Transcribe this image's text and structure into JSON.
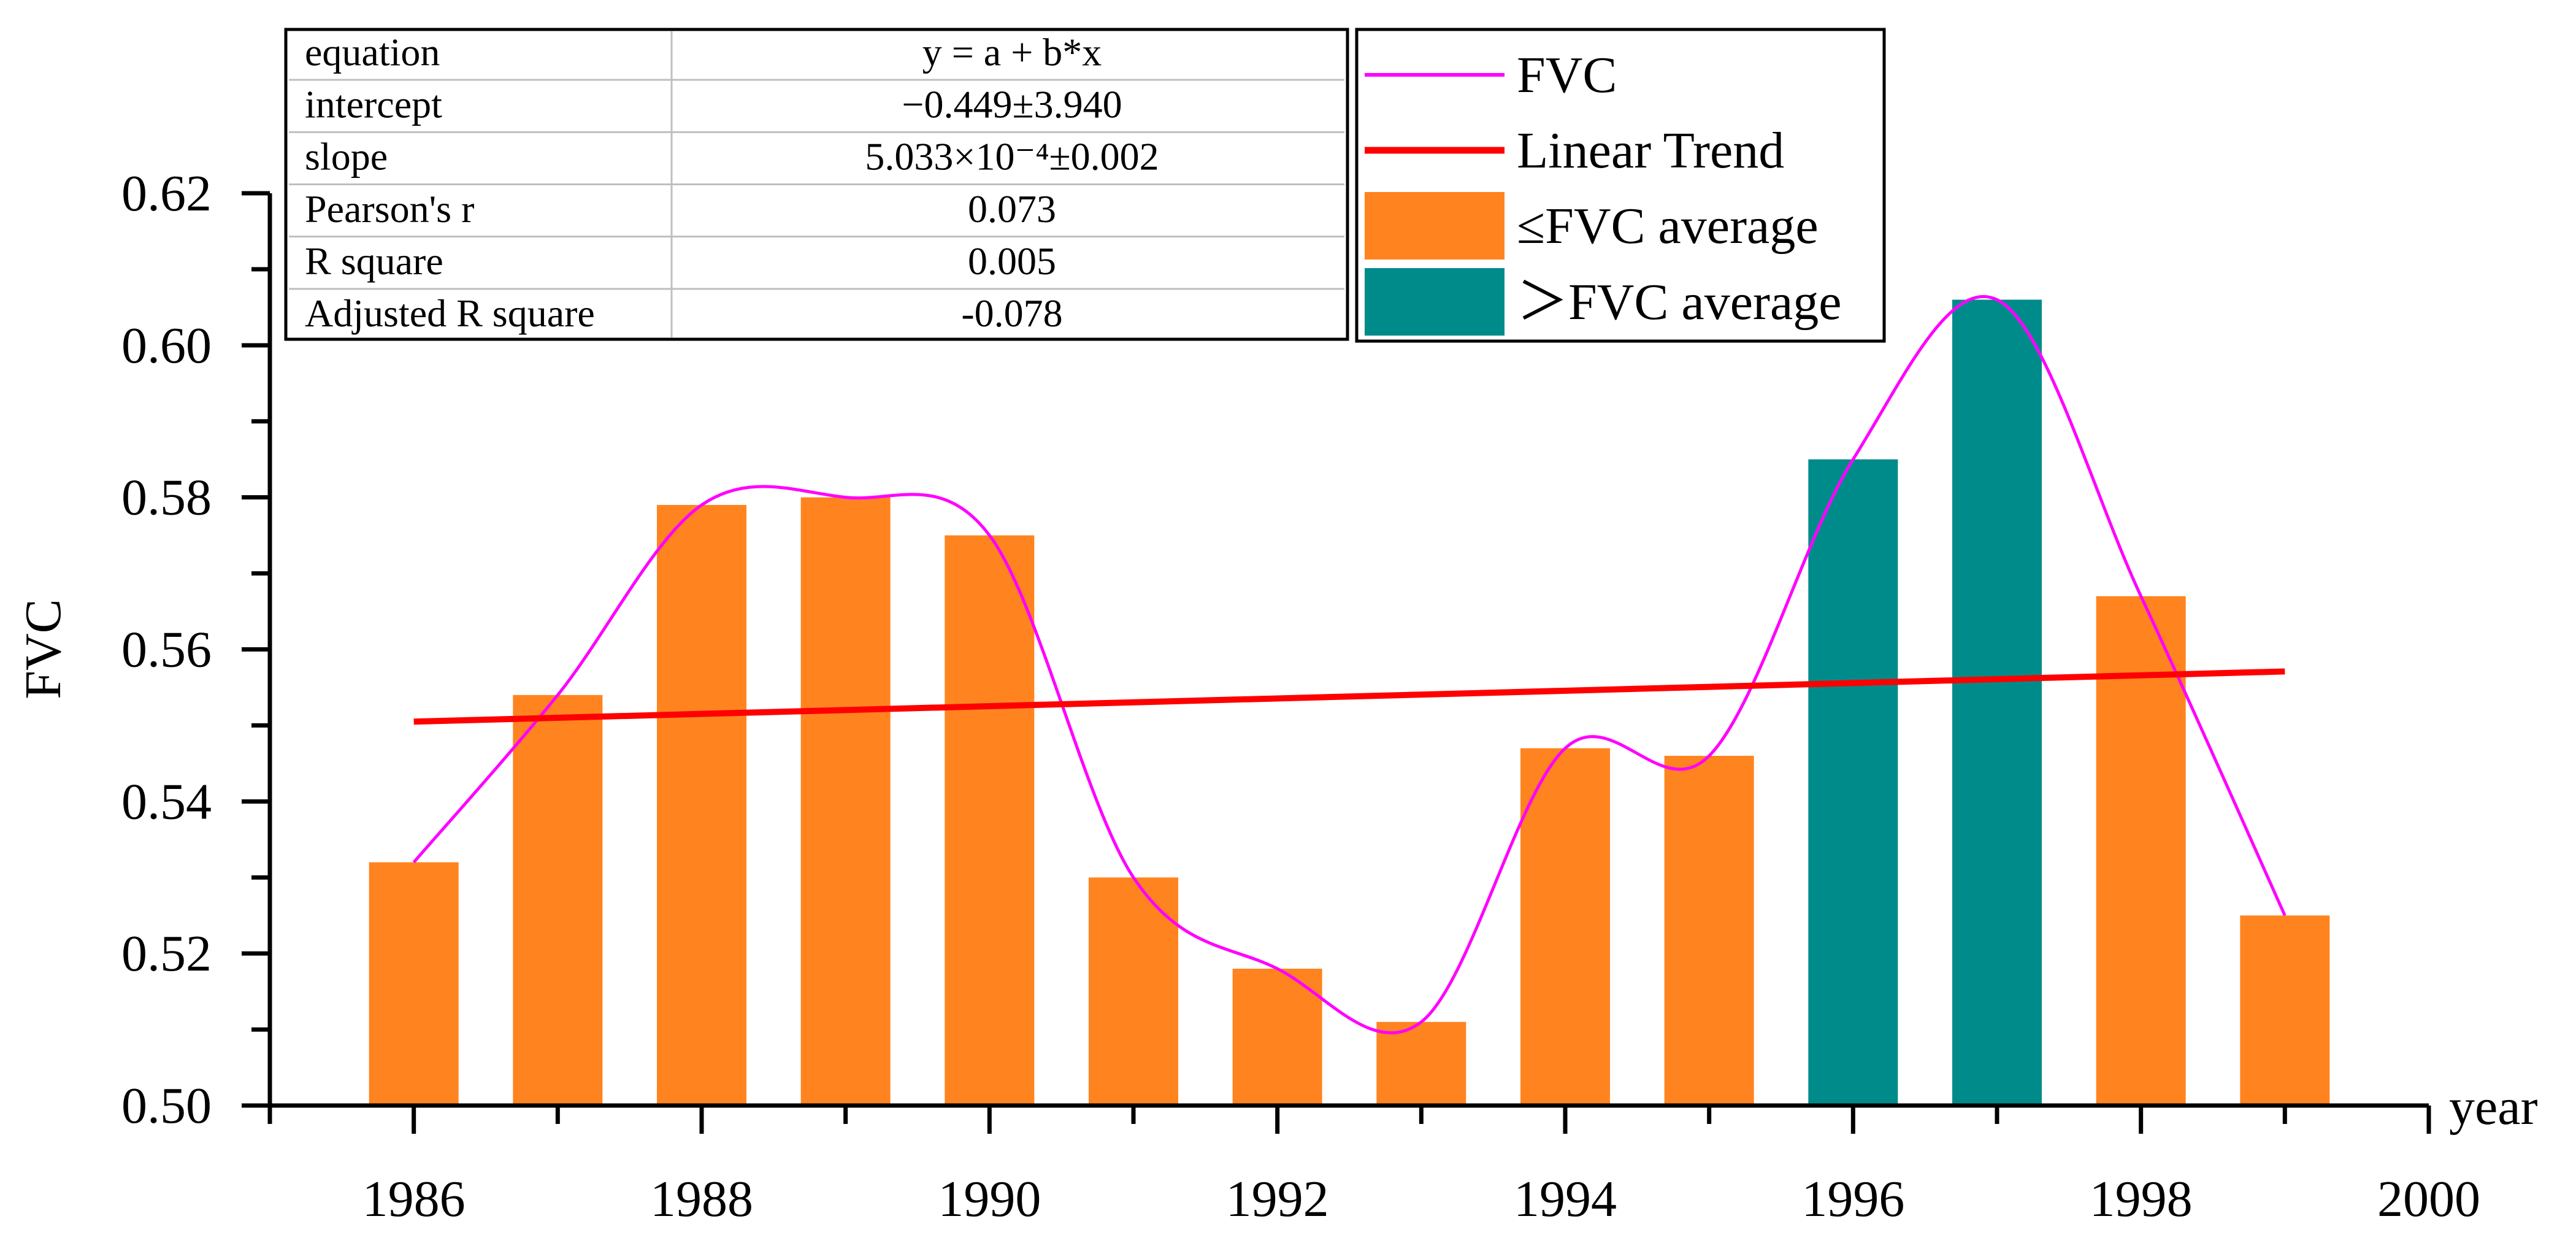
{
  "chart_data": {
    "type": "bar",
    "title": "",
    "xlabel": "year",
    "ylabel": "FVC",
    "xlim": [
      1985,
      2000
    ],
    "ylim": [
      0.5,
      0.62
    ],
    "x_ticks": [
      "1986",
      "1988",
      "1990",
      "1992",
      "1994",
      "1996",
      "1998",
      "2000"
    ],
    "y_ticks": [
      "0.50",
      "0.52",
      "0.54",
      "0.56",
      "0.58",
      "0.60",
      "0.62"
    ],
    "grid": false,
    "categories": [
      1986,
      1987,
      1988,
      1989,
      1990,
      1991,
      1992,
      1993,
      1994,
      1995,
      1996,
      1997,
      1998,
      1999
    ],
    "values": [
      0.532,
      0.554,
      0.579,
      0.58,
      0.575,
      0.53,
      0.518,
      0.511,
      0.547,
      0.546,
      0.585,
      0.606,
      0.567,
      0.525
    ],
    "above_average": [
      false,
      false,
      false,
      false,
      false,
      false,
      false,
      false,
      false,
      false,
      true,
      true,
      false,
      false
    ],
    "series": [
      {
        "name": "FVC",
        "kind": "smooth-line",
        "color": "#ff00ff"
      },
      {
        "name": "Linear Trend",
        "kind": "line",
        "color": "#ff0000",
        "x": [
          1986,
          1999
        ],
        "y": [
          0.5505,
          0.5571
        ]
      },
      {
        "name": "≤FVC average",
        "kind": "bar",
        "color": "#ff8420"
      },
      {
        "name": "＞FVC average",
        "kind": "bar",
        "color": "#008b8b"
      }
    ],
    "legend_position": "top-right",
    "stats_table": {
      "rows": [
        [
          "equation",
          "y = a + b*x"
        ],
        [
          "intercept",
          "−0.449±3.940"
        ],
        [
          "slope",
          "5.033×10⁻⁴±0.002"
        ],
        [
          "Pearson's r",
          "0.073"
        ],
        [
          "R square",
          "0.005"
        ],
        [
          "Adjusted R square",
          "-0.078"
        ]
      ]
    }
  }
}
